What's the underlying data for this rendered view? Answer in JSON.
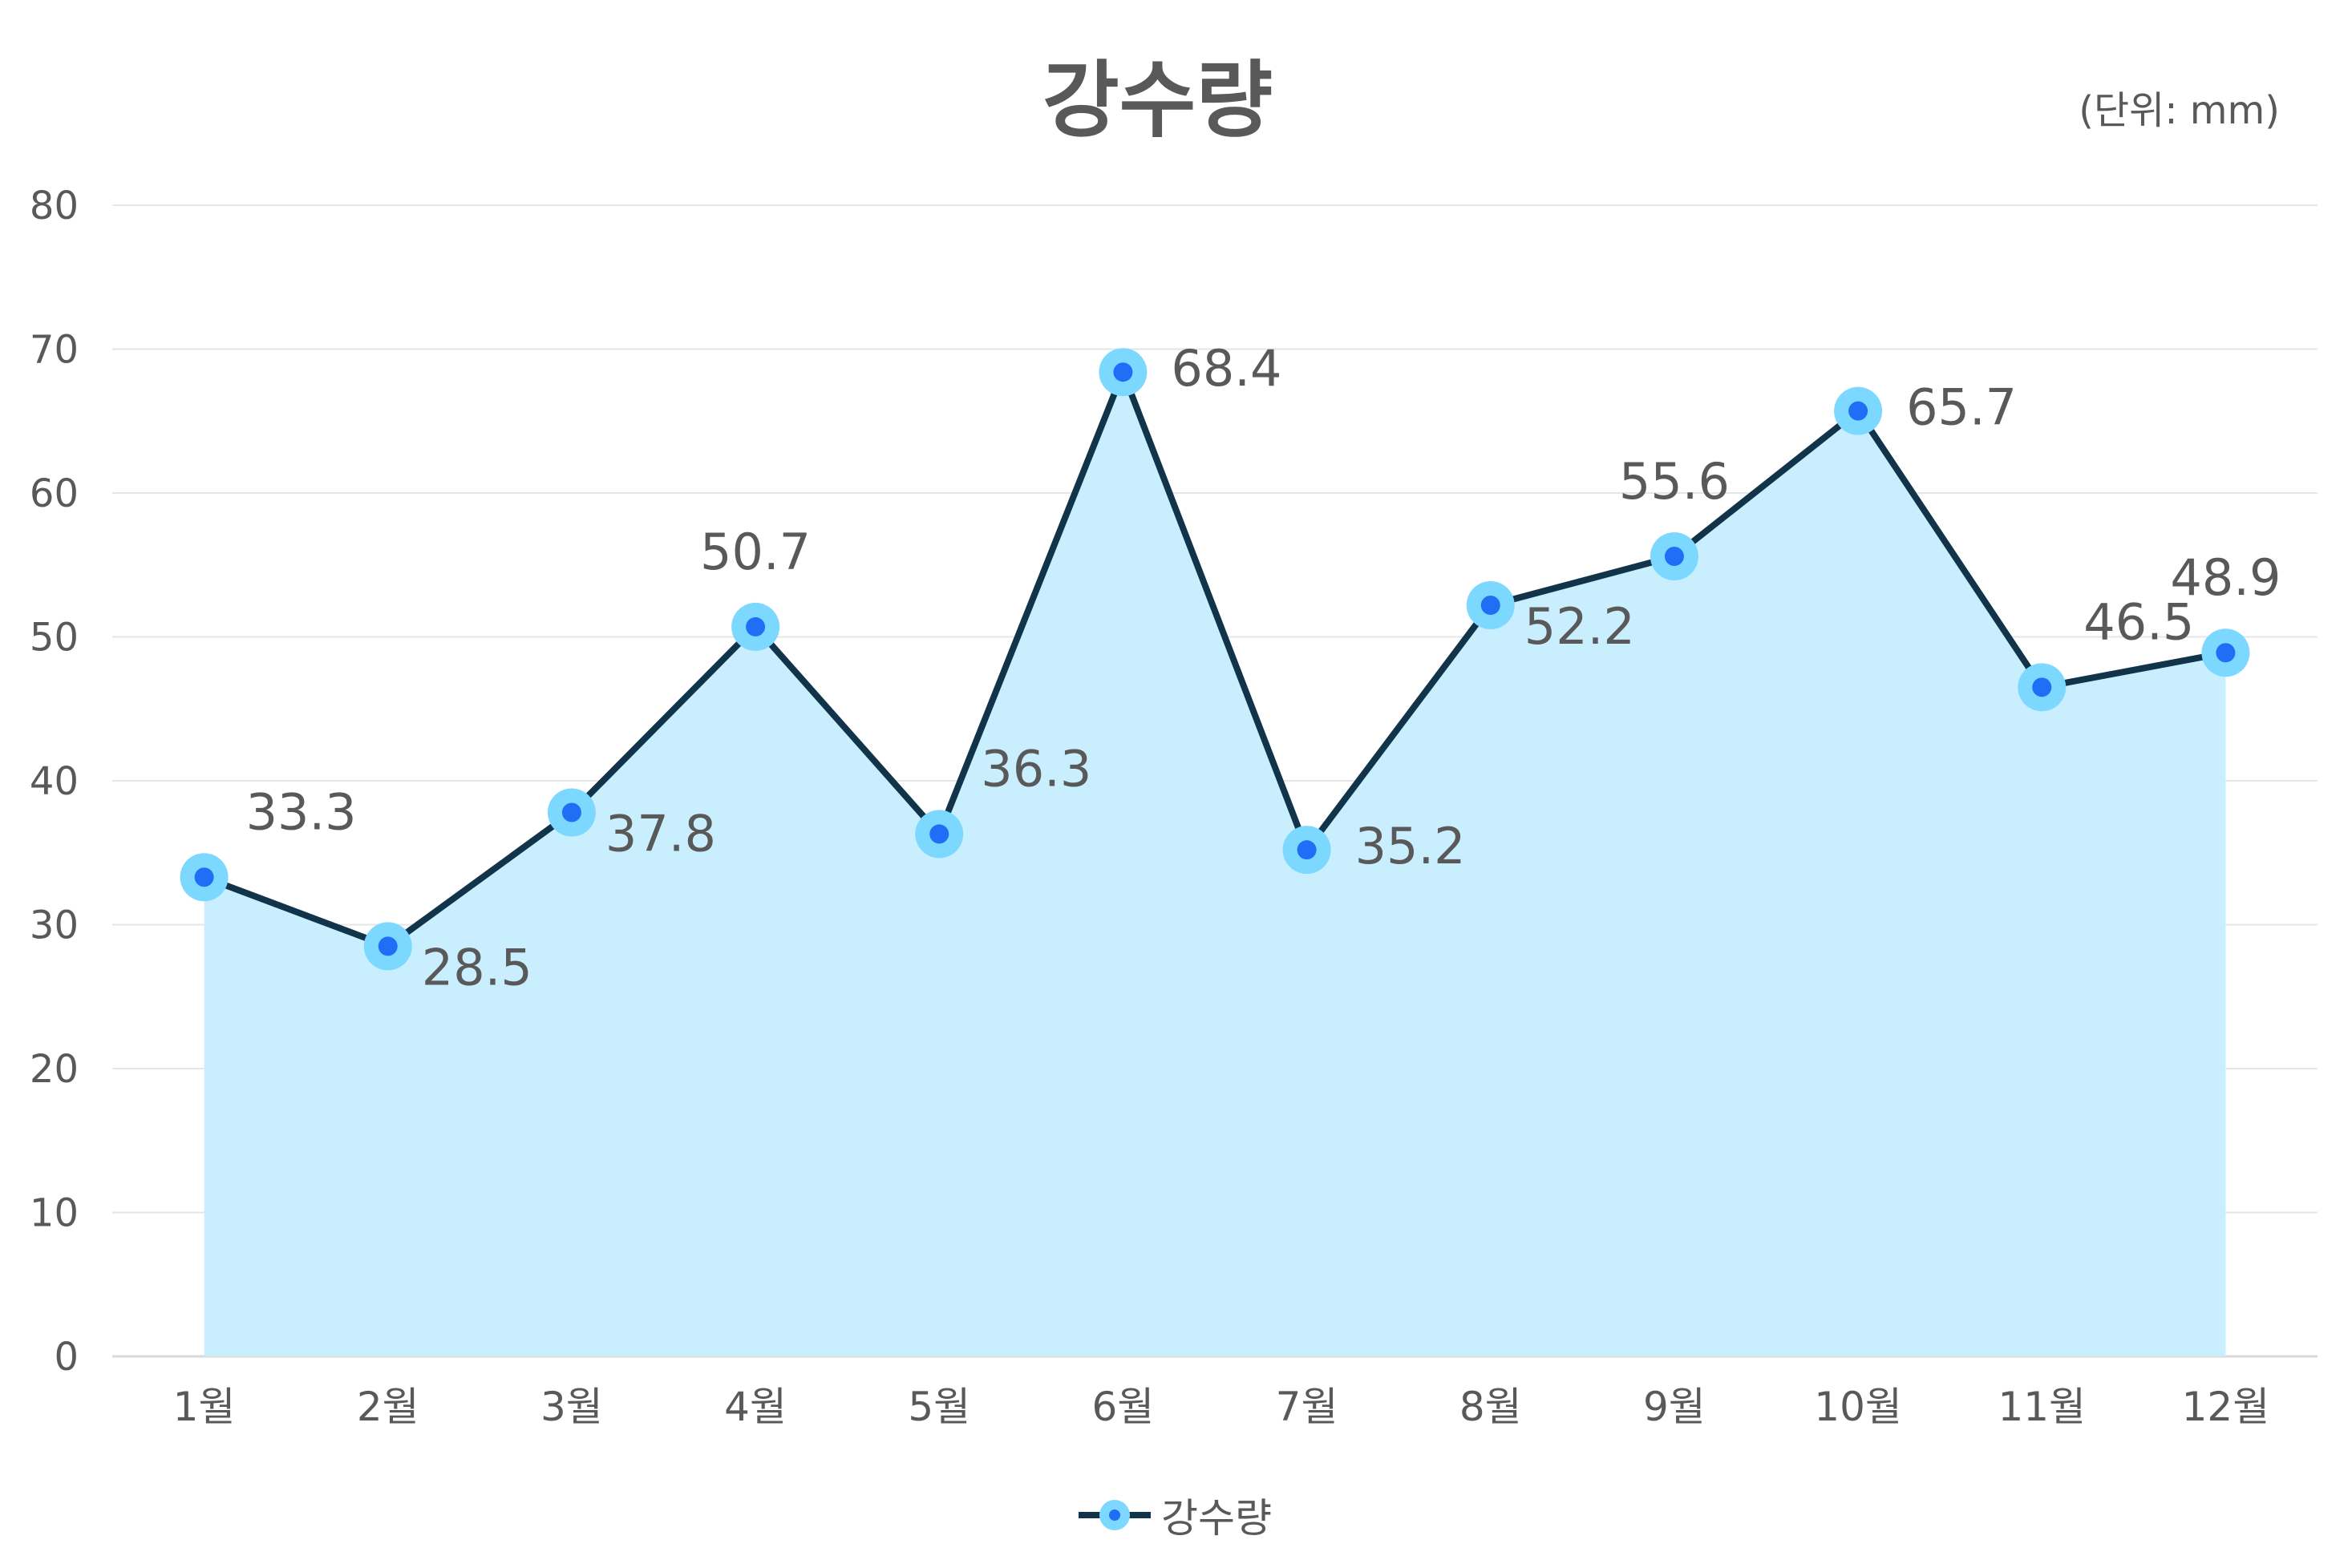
{
  "chart_data": {
    "type": "area",
    "title": "강수량",
    "unit_note": "(단위: mm)",
    "categories": [
      "1월",
      "2월",
      "3월",
      "4월",
      "5월",
      "6월",
      "7월",
      "8월",
      "9월",
      "10월",
      "11월",
      "12월"
    ],
    "series": [
      {
        "name": "강수량",
        "values": [
          33.3,
          28.5,
          37.8,
          50.7,
          36.3,
          68.4,
          35.2,
          52.2,
          55.6,
          65.7,
          46.5,
          48.9
        ]
      }
    ],
    "data_labels": [
      "33.3",
      "28.5",
      "37.8",
      "50.7",
      "36.3",
      "68.4",
      "35.2",
      "52.2",
      "55.6",
      "65.7",
      "46.5",
      "48.9"
    ],
    "label_positions": [
      "upper-right",
      "lower-right",
      "lower-right",
      "above",
      "upper-right",
      "right",
      "right",
      "lower-right",
      "above",
      "right",
      "upper-right",
      "above"
    ],
    "ylim": [
      0,
      80
    ],
    "yticks": [
      "0",
      "10",
      "20",
      "30",
      "40",
      "50",
      "60",
      "70",
      "80"
    ],
    "grid": true,
    "legend_position": "bottom",
    "colors": {
      "line": "#12344a",
      "fill": "#c9efff",
      "marker_outer": "#7dd8ff",
      "marker_inner": "#1e6ff5",
      "grid": "#e6e6e6",
      "text": "#595959"
    }
  }
}
